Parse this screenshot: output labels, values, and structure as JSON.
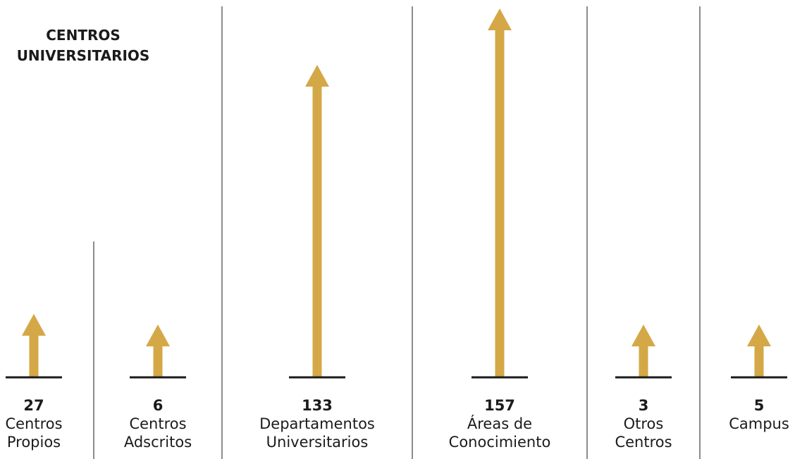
{
  "title_lines": [
    "CENTROS",
    "UNIVERSITARIOS"
  ],
  "colors": {
    "arrow": "#D4A846",
    "baseline": "#1b1b1b",
    "divider": "#8c8c8c",
    "text": "#1b1b1b"
  },
  "chart_data": {
    "type": "bar",
    "title": "CENTROS UNIVERSITARIOS",
    "categories": [
      "Centros Propios",
      "Centros Adscritos",
      "Departamentos Universitarios",
      "Áreas de Conocimiento",
      "Otros Centros",
      "Campus"
    ],
    "values": [
      27,
      6,
      133,
      157,
      3,
      5
    ],
    "items": [
      {
        "value": "27",
        "label_lines": [
          "Centros",
          "Propios"
        ]
      },
      {
        "value": "6",
        "label_lines": [
          "Centros",
          "Adscritos"
        ]
      },
      {
        "value": "133",
        "label_lines": [
          "Departamentos",
          "Universitarios"
        ]
      },
      {
        "value": "157",
        "label_lines": [
          "Áreas de",
          "Conocimiento"
        ]
      },
      {
        "value": "3",
        "label_lines": [
          "Otros",
          "Centros"
        ]
      },
      {
        "value": "5",
        "label_lines": [
          "Campus"
        ]
      }
    ]
  }
}
